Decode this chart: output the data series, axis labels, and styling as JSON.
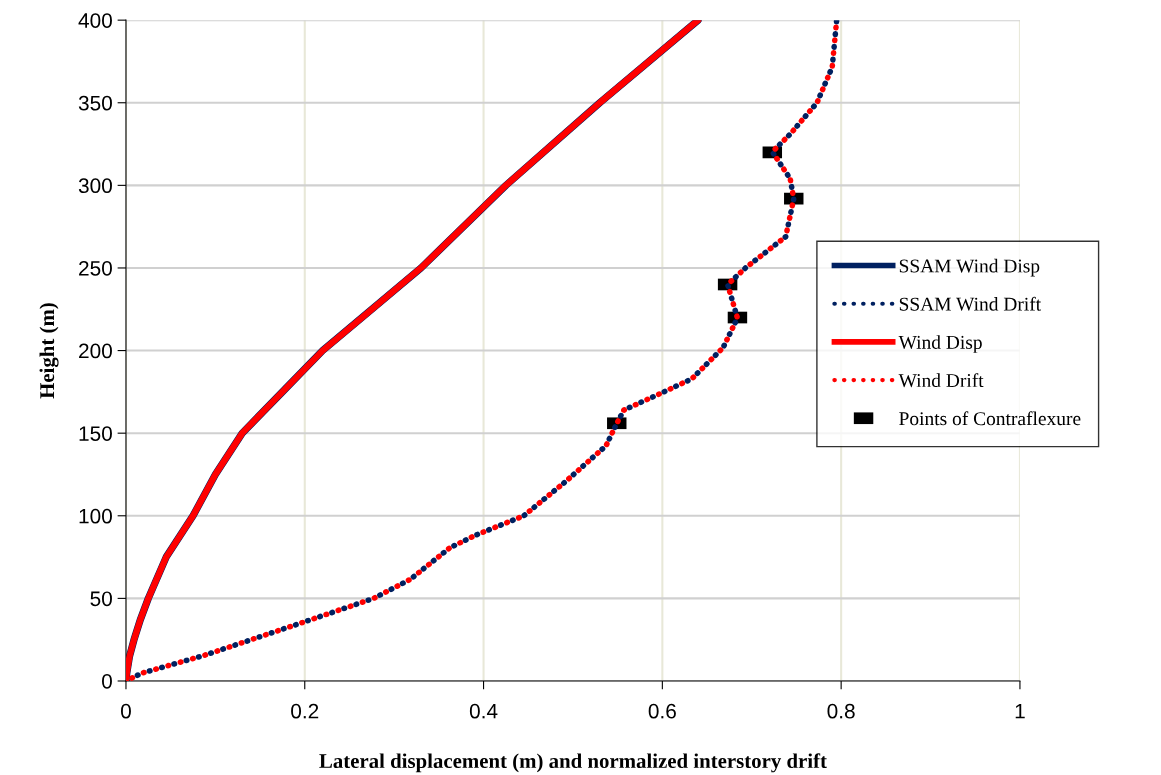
{
  "chart_data": {
    "type": "line",
    "xlabel": "Lateral displacement (m) and normalized interstory drift",
    "ylabel": "Height (m)",
    "xlim": [
      0,
      1
    ],
    "xticks": [
      0,
      0.2,
      0.4,
      0.6,
      0.8,
      1
    ],
    "ylim": [
      0,
      400
    ],
    "yticks": [
      0,
      50,
      100,
      150,
      200,
      250,
      300,
      350,
      400
    ],
    "grid": true,
    "legend": "right",
    "series": [
      {
        "name": "SSAM Wind Disp",
        "color": "#002060",
        "line_style": "solid",
        "x": [
          0,
          0.001,
          0.004,
          0.009,
          0.016,
          0.025,
          0.045,
          0.075,
          0.1,
          0.13,
          0.175,
          0.22,
          0.275,
          0.33,
          0.425,
          0.53,
          0.64
        ],
        "values": [
          0,
          5,
          15,
          25,
          37,
          50,
          75,
          100,
          125,
          150,
          175,
          200,
          225,
          250,
          300,
          350,
          400
        ]
      },
      {
        "name": "SSAM Wind Drift",
        "color": "#002060",
        "line_style": "dotted",
        "x": [
          0,
          0.018,
          0.088,
          0.193,
          0.277,
          0.318,
          0.362,
          0.39,
          0.445,
          0.492,
          0.537,
          0.549,
          0.557,
          0.601,
          0.633,
          0.668,
          0.684,
          0.673,
          0.693,
          0.738,
          0.747,
          0.743,
          0.723,
          0.743,
          0.773,
          0.79,
          0.795
        ],
        "values": [
          0,
          4.8,
          15.6,
          34.6,
          50,
          61.5,
          80.5,
          88,
          100,
          120.8,
          142.4,
          155.9,
          164,
          174.8,
          182.9,
          201.8,
          219.7,
          240,
          250,
          268.9,
          291.9,
          304,
          320.3,
          331,
          350,
          371.6,
          400
        ]
      },
      {
        "name": "Wind Disp",
        "color": "#ff0000",
        "line_style": "solid",
        "x": [
          0,
          0.001,
          0.004,
          0.009,
          0.016,
          0.025,
          0.045,
          0.075,
          0.1,
          0.13,
          0.175,
          0.22,
          0.275,
          0.33,
          0.425,
          0.53,
          0.64
        ],
        "values": [
          0,
          5,
          15,
          25,
          37,
          50,
          75,
          100,
          125,
          150,
          175,
          200,
          225,
          250,
          300,
          350,
          400
        ]
      },
      {
        "name": "Wind Drift",
        "color": "#ff0000",
        "line_style": "dotted",
        "x": [
          0,
          0.018,
          0.088,
          0.193,
          0.277,
          0.318,
          0.362,
          0.39,
          0.445,
          0.492,
          0.537,
          0.549,
          0.557,
          0.601,
          0.633,
          0.668,
          0.684,
          0.673,
          0.693,
          0.738,
          0.747,
          0.743,
          0.723,
          0.743,
          0.773,
          0.79,
          0.795
        ],
        "values": [
          0,
          4.8,
          15.6,
          34.6,
          50,
          61.5,
          80.5,
          88,
          100,
          120.8,
          142.4,
          155.9,
          164,
          174.8,
          182.9,
          201.8,
          219.7,
          240,
          250,
          268.9,
          291.9,
          304,
          320.3,
          331,
          350,
          371.6,
          400
        ]
      },
      {
        "name": "Points of Contraflexure",
        "type": "scatter",
        "color": "#000000",
        "x": [
          0.549,
          0.684,
          0.673,
          0.747,
          0.723
        ],
        "values": [
          156,
          220,
          240,
          292,
          320
        ]
      }
    ]
  }
}
